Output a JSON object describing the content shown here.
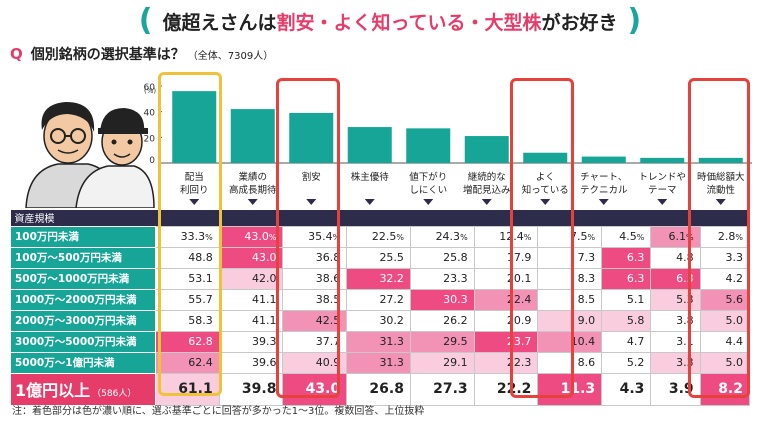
{
  "headline": {
    "open": "(",
    "part1": "億超えさんは",
    "highlight": "割安・よく知っている・大型株",
    "part2": "がお好き",
    "close": ")"
  },
  "question": {
    "mark": "Q",
    "text": "個別銘柄の選択基準は？",
    "sub": "（全体、7309人）"
  },
  "row_header": "資産規模",
  "note": "注：着色部分は色が濃い順に、選ぶ基準ごとに回答が多かった1～3位。複数回答、上位抜粋",
  "colors": {
    "teal": "#16a597",
    "navy": "#2d2c4b",
    "pink": "#e63c6a",
    "rank1": "#ee4b83",
    "rank2": "#f293b5",
    "rank3": "#f9cddd",
    "red_frame": "#e8403a",
    "yellow_frame": "#f0c23a"
  },
  "chart_data": {
    "type": "bar",
    "categories": [
      "配当\n利回り",
      "業績の\n高成長期待",
      "割安",
      "株主優待",
      "値下がり\nしにくい",
      "継続的な\n増配見込み",
      "よく\n知っている",
      "チャート、\nテクニカル",
      "トレンドや\nテーマ",
      "時価総額大\n流動性"
    ],
    "values": [
      56,
      42,
      39,
      28,
      27,
      21,
      8,
      5,
      4,
      4
    ],
    "unit": "(%)",
    "yticks": [
      "60",
      "40",
      "20",
      "0"
    ],
    "ylim": [
      0,
      60
    ]
  },
  "table": {
    "rows": [
      {
        "label": "100万円未満",
        "values": [
          "33.3",
          "43.0",
          "35.4",
          "22.5",
          "24.3",
          "12.4",
          "7.5",
          "4.5",
          "6.1",
          "2.8"
        ],
        "ranks": [
          0,
          1,
          0,
          0,
          0,
          0,
          0,
          0,
          2,
          0
        ],
        "pct": true
      },
      {
        "label": "100万～500万円未満",
        "values": [
          "48.8",
          "43.0",
          "36.8",
          "25.5",
          "25.8",
          "17.9",
          "7.3",
          "6.3",
          "4.8",
          "3.3"
        ],
        "ranks": [
          0,
          1,
          0,
          0,
          0,
          0,
          0,
          1,
          0,
          0
        ],
        "pct": false
      },
      {
        "label": "500万～1000万円未満",
        "values": [
          "53.1",
          "42.0",
          "38.6",
          "32.2",
          "23.3",
          "20.1",
          "8.3",
          "6.3",
          "6.3",
          "4.2"
        ],
        "ranks": [
          0,
          3,
          0,
          1,
          0,
          0,
          0,
          1,
          1,
          0
        ],
        "pct": false
      },
      {
        "label": "1000万～2000万円未満",
        "values": [
          "55.7",
          "41.1",
          "38.5",
          "27.2",
          "30.3",
          "22.4",
          "8.5",
          "5.1",
          "5.3",
          "5.6"
        ],
        "ranks": [
          0,
          0,
          0,
          0,
          1,
          2,
          0,
          0,
          3,
          2
        ],
        "pct": false
      },
      {
        "label": "2000万～3000万円未満",
        "values": [
          "58.3",
          "41.1",
          "42.5",
          "30.2",
          "26.2",
          "20.9",
          "9.0",
          "5.8",
          "3.8",
          "5.0"
        ],
        "ranks": [
          0,
          0,
          2,
          0,
          0,
          0,
          3,
          3,
          0,
          3
        ],
        "pct": false
      },
      {
        "label": "3000万～5000万円未満",
        "values": [
          "62.8",
          "39.3",
          "37.7",
          "31.3",
          "29.5",
          "23.7",
          "10.4",
          "4.7",
          "3.1",
          "4.4"
        ],
        "ranks": [
          1,
          0,
          0,
          2,
          2,
          1,
          2,
          0,
          0,
          0
        ],
        "pct": false
      },
      {
        "label": "5000万～1億円未満",
        "values": [
          "62.4",
          "39.6",
          "40.9",
          "31.3",
          "29.1",
          "22.3",
          "8.6",
          "5.2",
          "3.3",
          "5.0"
        ],
        "ranks": [
          2,
          0,
          3,
          2,
          3,
          3,
          0,
          0,
          3,
          3
        ],
        "pct": false
      }
    ],
    "big_row": {
      "label": "1億円以上",
      "sub": "（586人）",
      "values": [
        "61.1",
        "39.8",
        "43.0",
        "26.8",
        "27.3",
        "22.2",
        "11.3",
        "4.3",
        "3.9",
        "8.2"
      ],
      "ranks": [
        3,
        0,
        1,
        0,
        0,
        0,
        1,
        0,
        0,
        1
      ]
    }
  }
}
